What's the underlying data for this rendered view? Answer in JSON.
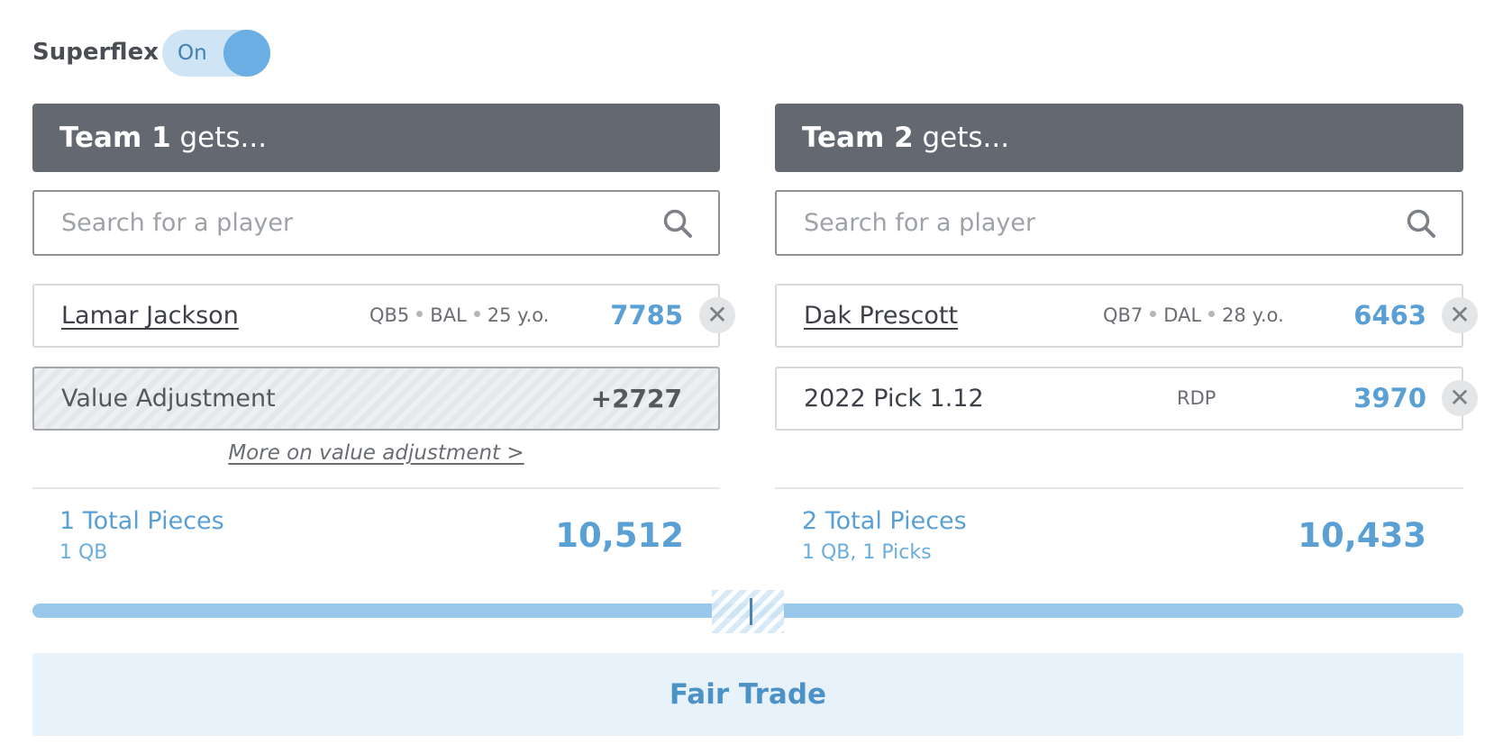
{
  "superflex": {
    "label": "Superflex",
    "state_text": "On",
    "enabled": true
  },
  "teams": [
    {
      "header_name": "Team 1",
      "header_suffix": " gets...",
      "search_placeholder": "Search for a player",
      "players": [
        {
          "name": "Lamar Jackson",
          "position": "QB5",
          "team": "BAL",
          "age": "25 y.o.",
          "value": "7785"
        }
      ],
      "adjustment": {
        "label": "Value Adjustment",
        "value": "+2727",
        "link": "More on value adjustment >"
      },
      "totals": {
        "pieces": "1 Total Pieces",
        "breakdown": "1 QB",
        "value": "10,512"
      }
    },
    {
      "header_name": "Team 2",
      "header_suffix": " gets...",
      "search_placeholder": "Search for a player",
      "players": [
        {
          "name": "Dak Prescott",
          "position": "QB7",
          "team": "DAL",
          "age": "28 y.o.",
          "value": "6463"
        }
      ],
      "picks": [
        {
          "name": "2022 Pick 1.12",
          "tag": "RDP",
          "value": "3970"
        }
      ],
      "totals": {
        "pieces": "2 Total Pieces",
        "breakdown": "1 QB, 1 Picks",
        "value": "10,433"
      }
    }
  ],
  "remove_symbol": "✕",
  "verdict": "Fair Trade",
  "colors": {
    "accent": "#5aa0d4",
    "header_bg": "#646871",
    "verdict_bg": "#e7f2fb"
  }
}
